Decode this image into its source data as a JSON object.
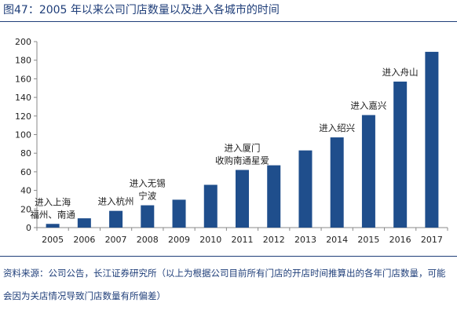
{
  "figure": {
    "title": "图47：2005 年以来公司门店数量以及进入各城市的时间",
    "note": "资料来源：公司公告，长江证券研究所（以上为根据公司目前所有门店的开店时间推算出的各年门店数量，可能会因为关店情况导致门店数量有所偏差）"
  },
  "colors": {
    "bar": "#1f4e8c",
    "title": "#1f3e79",
    "axis": "#888888",
    "text": "#222222"
  },
  "chart_data": {
    "type": "bar",
    "title": "",
    "xlabel": "",
    "ylabel": "",
    "categories": [
      "2005",
      "2006",
      "2007",
      "2008",
      "2009",
      "2010",
      "2011",
      "2012",
      "2013",
      "2014",
      "2015",
      "2016",
      "2017"
    ],
    "values": [
      4,
      10,
      18,
      24,
      30,
      46,
      62,
      67,
      83,
      97,
      121,
      157,
      189
    ],
    "ylim": [
      0,
      200
    ],
    "yticks": [
      0,
      20,
      40,
      60,
      80,
      100,
      120,
      140,
      160,
      180,
      200
    ],
    "grid": false,
    "legend": "none",
    "annotations": [
      {
        "category": "2005",
        "lines": [
          "进入上海",
          "福州、南通"
        ]
      },
      {
        "category": "2007",
        "lines": [
          "进入杭州"
        ]
      },
      {
        "category": "2008",
        "lines": [
          "进入无锡",
          "宁波"
        ]
      },
      {
        "category": "2011",
        "lines": [
          "进入厦门",
          "收购南通星爱"
        ]
      },
      {
        "category": "2014",
        "lines": [
          "进入绍兴"
        ]
      },
      {
        "category": "2015",
        "lines": [
          "进入嘉兴"
        ]
      },
      {
        "category": "2016",
        "lines": [
          "进入舟山"
        ]
      }
    ]
  }
}
